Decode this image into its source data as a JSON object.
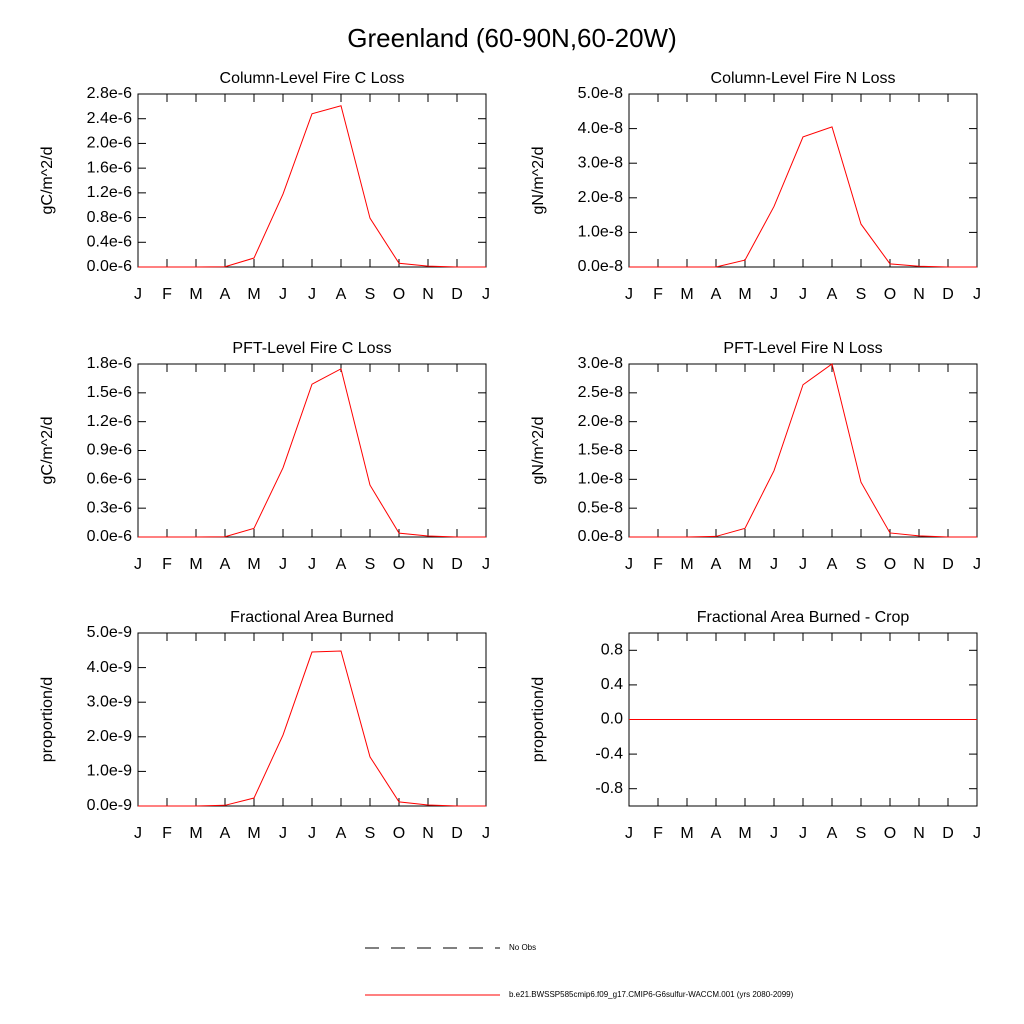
{
  "page_title": "Greenland (60-90N,60-20W)",
  "chart_data": [
    {
      "type": "line",
      "title": "Column-Level Fire C Loss",
      "ylabel": "gC/m^2/d",
      "categories": [
        "J",
        "F",
        "M",
        "A",
        "M",
        "J",
        "J",
        "A",
        "S",
        "O",
        "N",
        "D",
        "J"
      ],
      "values": [
        0,
        0,
        0,
        5e-09,
        1.45e-07,
        1.18e-06,
        2.48e-06,
        2.61e-06,
        7.9e-07,
        6e-08,
        1.5e-08,
        0,
        0
      ],
      "color": "#ff0000",
      "ylim": [
        0,
        2.8e-06
      ],
      "yticks": [
        {
          "value": 0,
          "label": "0.0e-6"
        },
        {
          "value": 4e-07,
          "label": "0.4e-6"
        },
        {
          "value": 8e-07,
          "label": "0.8e-6"
        },
        {
          "value": 1.2e-06,
          "label": "1.2e-6"
        },
        {
          "value": 1.6e-06,
          "label": "1.6e-6"
        },
        {
          "value": 2e-06,
          "label": "2.0e-6"
        },
        {
          "value": 2.4e-06,
          "label": "2.4e-6"
        },
        {
          "value": 2.8e-06,
          "label": "2.8e-6"
        }
      ]
    },
    {
      "type": "line",
      "title": "Column-Level Fire N Loss",
      "ylabel": "gN/m^2/d",
      "categories": [
        "J",
        "F",
        "M",
        "A",
        "M",
        "J",
        "J",
        "A",
        "S",
        "O",
        "N",
        "D",
        "J"
      ],
      "values": [
        0,
        0,
        0,
        0,
        2e-09,
        1.75e-08,
        3.76e-08,
        4.05e-08,
        1.24e-08,
        9e-10,
        2e-10,
        0,
        0
      ],
      "color": "#ff0000",
      "ylim": [
        0,
        5e-08
      ],
      "yticks": [
        {
          "value": 0,
          "label": "0.0e-8"
        },
        {
          "value": 1e-08,
          "label": "1.0e-8"
        },
        {
          "value": 2e-08,
          "label": "2.0e-8"
        },
        {
          "value": 3e-08,
          "label": "3.0e-8"
        },
        {
          "value": 4e-08,
          "label": "4.0e-8"
        },
        {
          "value": 5e-08,
          "label": "5.0e-8"
        }
      ]
    },
    {
      "type": "line",
      "title": "PFT-Level Fire C Loss",
      "ylabel": "gC/m^2/d",
      "categories": [
        "J",
        "F",
        "M",
        "A",
        "M",
        "J",
        "J",
        "A",
        "S",
        "O",
        "N",
        "D",
        "J"
      ],
      "values": [
        0,
        0,
        0,
        3e-09,
        9e-08,
        7.2e-07,
        1.59e-06,
        1.75e-06,
        5.4e-07,
        4e-08,
        1e-08,
        0,
        0
      ],
      "color": "#ff0000",
      "ylim": [
        0,
        1.8e-06
      ],
      "yticks": [
        {
          "value": 0,
          "label": "0.0e-6"
        },
        {
          "value": 3e-07,
          "label": "0.3e-6"
        },
        {
          "value": 6e-07,
          "label": "0.6e-6"
        },
        {
          "value": 9e-07,
          "label": "0.9e-6"
        },
        {
          "value": 1.2e-06,
          "label": "1.2e-6"
        },
        {
          "value": 1.5e-06,
          "label": "1.5e-6"
        },
        {
          "value": 1.8e-06,
          "label": "1.8e-6"
        }
      ]
    },
    {
      "type": "line",
      "title": "PFT-Level Fire N Loss",
      "ylabel": "gN/m^2/d",
      "categories": [
        "J",
        "F",
        "M",
        "A",
        "M",
        "J",
        "J",
        "A",
        "S",
        "O",
        "N",
        "D",
        "J"
      ],
      "values": [
        0,
        0,
        0,
        1e-10,
        1.5e-09,
        1.15e-08,
        2.64e-08,
        3e-08,
        9.5e-09,
        7e-10,
        2e-10,
        0,
        0
      ],
      "color": "#ff0000",
      "ylim": [
        0,
        3e-08
      ],
      "yticks": [
        {
          "value": 0,
          "label": "0.0e-8"
        },
        {
          "value": 5e-09,
          "label": "0.5e-8"
        },
        {
          "value": 1e-08,
          "label": "1.0e-8"
        },
        {
          "value": 1.5e-08,
          "label": "1.5e-8"
        },
        {
          "value": 2e-08,
          "label": "2.0e-8"
        },
        {
          "value": 2.5e-08,
          "label": "2.5e-8"
        },
        {
          "value": 3e-08,
          "label": "3.0e-8"
        }
      ]
    },
    {
      "type": "line",
      "title": "Fractional Area Burned",
      "ylabel": "proportion/d",
      "categories": [
        "J",
        "F",
        "M",
        "A",
        "M",
        "J",
        "J",
        "A",
        "S",
        "O",
        "N",
        "D",
        "J"
      ],
      "values": [
        0,
        0,
        0,
        2e-11,
        2.3e-10,
        2.05e-09,
        4.45e-09,
        4.48e-09,
        1.42e-09,
        1.2e-10,
        3e-11,
        0,
        0
      ],
      "color": "#ff0000",
      "ylim": [
        0,
        5e-09
      ],
      "yticks": [
        {
          "value": 0,
          "label": "0.0e-9"
        },
        {
          "value": 1e-09,
          "label": "1.0e-9"
        },
        {
          "value": 2e-09,
          "label": "2.0e-9"
        },
        {
          "value": 3e-09,
          "label": "3.0e-9"
        },
        {
          "value": 4e-09,
          "label": "4.0e-9"
        },
        {
          "value": 5e-09,
          "label": "5.0e-9"
        }
      ]
    },
    {
      "type": "line",
      "title": "Fractional Area Burned - Crop",
      "ylabel": "proportion/d",
      "categories": [
        "J",
        "F",
        "M",
        "A",
        "M",
        "J",
        "J",
        "A",
        "S",
        "O",
        "N",
        "D",
        "J"
      ],
      "values": [
        0,
        0,
        0,
        0,
        0,
        0,
        0,
        0,
        0,
        0,
        0,
        0,
        0
      ],
      "color": "#ff0000",
      "ylim": [
        -1,
        1
      ],
      "yticks": [
        -0.8,
        -0.4,
        {
          "value": 0,
          "label": "0.0"
        },
        0.4,
        0.8
      ]
    }
  ],
  "legend": [
    {
      "name": "No Obs",
      "color": "#000000",
      "dashed": true
    },
    {
      "name": "b.e21.BWSSP585cmip6.f09_g17.CMIP6-G6sulfur-WACCM.001 (yrs 2080-2099)",
      "color": "#ff0000",
      "dashed": false
    }
  ]
}
